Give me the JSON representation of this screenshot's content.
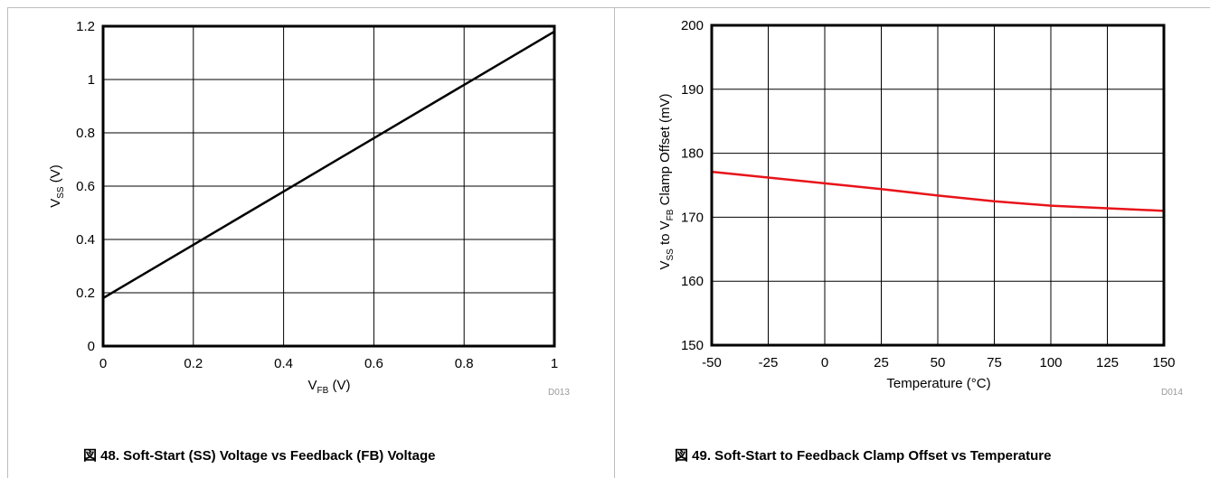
{
  "chart_data": [
    {
      "type": "line",
      "x": [
        0,
        0.2,
        0.4,
        0.6,
        0.8,
        1.0
      ],
      "series": [
        {
          "name": "",
          "x": [
            0,
            0.2,
            0.4,
            0.6,
            0.8,
            1.0
          ],
          "y": [
            0.18,
            0.38,
            0.58,
            0.78,
            0.98,
            1.18
          ],
          "color": "#000000"
        }
      ],
      "xlim": [
        0,
        1
      ],
      "ylim": [
        0,
        1.2
      ],
      "xticks": [
        "0",
        "0.2",
        "0.4",
        "0.6",
        "0.8",
        "1"
      ],
      "yticks": [
        "0",
        "0.2",
        "0.4",
        "0.6",
        "0.8",
        "1",
        "1.2"
      ],
      "xlabel": {
        "main": "V",
        "sub": "FB",
        "tail": " (V)"
      },
      "ylabel": {
        "main": "V",
        "sub": "SS",
        "tail": " (V)"
      },
      "code": "D013",
      "grid": true,
      "caption": "図 48. Soft-Start (SS) Voltage vs Feedback (FB) Voltage"
    },
    {
      "type": "line",
      "series": [
        {
          "name": "",
          "x": [
            -50,
            -25,
            0,
            25,
            50,
            75,
            100,
            125,
            150
          ],
          "y": [
            177.1,
            176.2,
            175.3,
            174.4,
            173.4,
            172.5,
            171.8,
            171.4,
            171.0
          ],
          "color": "#e8141a"
        }
      ],
      "xlim": [
        -50,
        150
      ],
      "ylim": [
        150,
        200
      ],
      "xticks": [
        "-50",
        "-25",
        "0",
        "25",
        "50",
        "75",
        "100",
        "125",
        "150"
      ],
      "yticks": [
        "150",
        "160",
        "170",
        "180",
        "190",
        "200"
      ],
      "xlabel": {
        "text": "Temperature (°C)"
      },
      "ylabel": {
        "p1": "V",
        "sub1": "SS",
        "p2": " to V",
        "sub2": "FB",
        "p3": " Clamp Offset (mV)"
      },
      "code": "D014",
      "grid": true,
      "caption": "図 49. Soft-Start to Feedback Clamp Offset vs Temperature"
    }
  ]
}
